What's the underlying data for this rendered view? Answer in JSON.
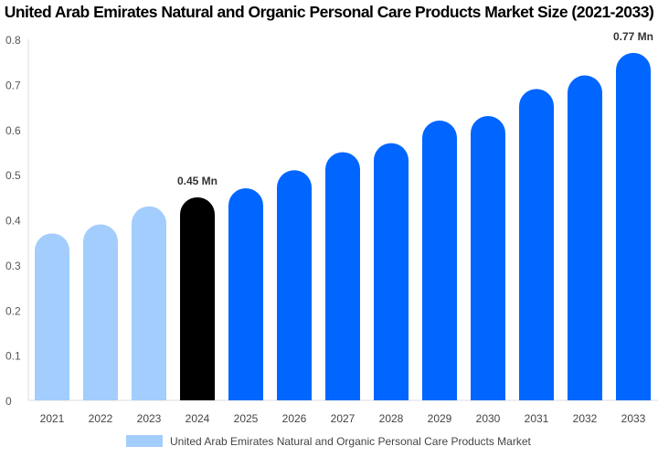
{
  "chart_data": {
    "type": "bar",
    "title": "United Arab Emirates Natural and Organic Personal Care Products Market Size (2021-2033)",
    "categories": [
      "2021",
      "2022",
      "2023",
      "2024",
      "2025",
      "2026",
      "2027",
      "2028",
      "2029",
      "2030",
      "2031",
      "2032",
      "2033"
    ],
    "series": [
      {
        "name": "United Arab Emirates Natural and Organic Personal Care Products Market",
        "values": [
          0.37,
          0.39,
          0.43,
          0.45,
          0.47,
          0.51,
          0.55,
          0.57,
          0.62,
          0.63,
          0.69,
          0.72,
          0.77
        ]
      }
    ],
    "data_labels": {
      "2024": "0.45 Mn",
      "2033": "0.77 Mn"
    },
    "ylim": [
      0,
      0.8
    ],
    "yticks": [
      "0",
      "0.1",
      "0.2",
      "0.3",
      "0.4",
      "0.5",
      "0.6",
      "0.7",
      "0.8"
    ],
    "grid": false,
    "legend_position": "bottom",
    "colors": {
      "historic": "#a3cdfc",
      "current": "#000000",
      "forecast": "#0066ff"
    }
  }
}
